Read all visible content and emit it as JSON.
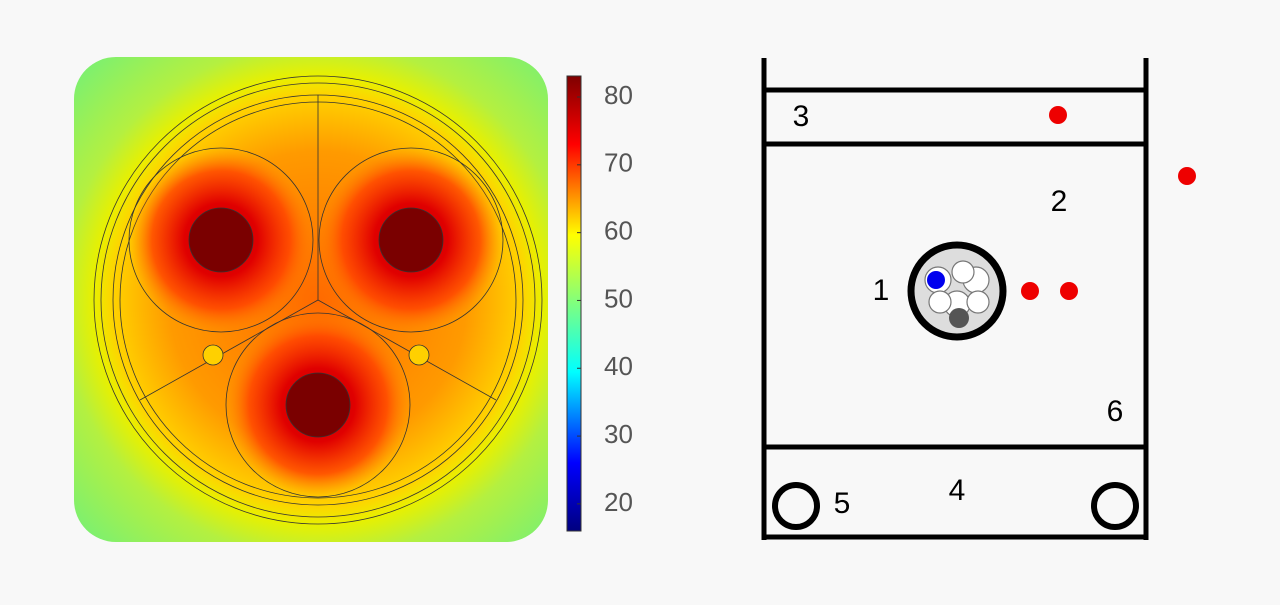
{
  "colorbar": {
    "min": 16,
    "max": 83.1,
    "ticks": [
      80,
      70,
      60,
      50,
      40,
      30,
      20
    ]
  },
  "schematic": {
    "labels": [
      "1",
      "2",
      "3",
      "4",
      "5",
      "6"
    ]
  }
}
